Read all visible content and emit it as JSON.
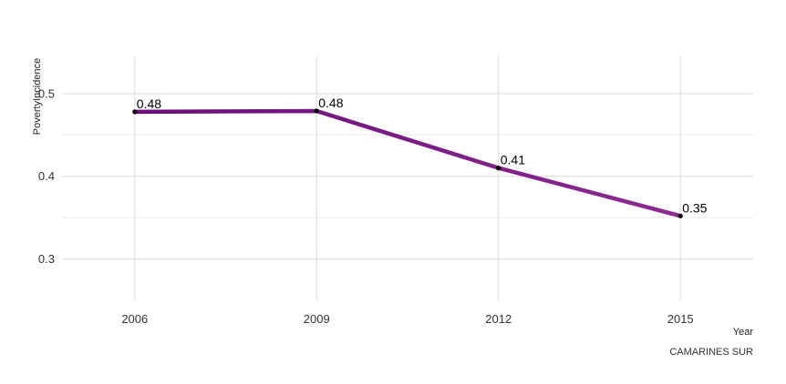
{
  "chart_data": {
    "type": "line",
    "x": [
      "2006",
      "2009",
      "2012",
      "2015"
    ],
    "series": [
      {
        "values": [
          0.478,
          0.479,
          0.41,
          0.352
        ],
        "labels": [
          "0.48",
          "0.48",
          "0.41",
          "0.35"
        ]
      }
    ],
    "ylabel": "PovertyIncidence",
    "xlabel": "Year",
    "caption": "CAMARINES SUR",
    "yticks": [
      0.3,
      0.4,
      0.5
    ],
    "ytick_labels": [
      "0.3",
      "0.4",
      "0.5"
    ],
    "ylim": [
      0.25,
      0.545
    ],
    "xlim": [
      2004.8,
      2016.2
    ],
    "grid": true,
    "line_color_start": "#6a0d7a",
    "line_color_end": "#8e2a92"
  }
}
